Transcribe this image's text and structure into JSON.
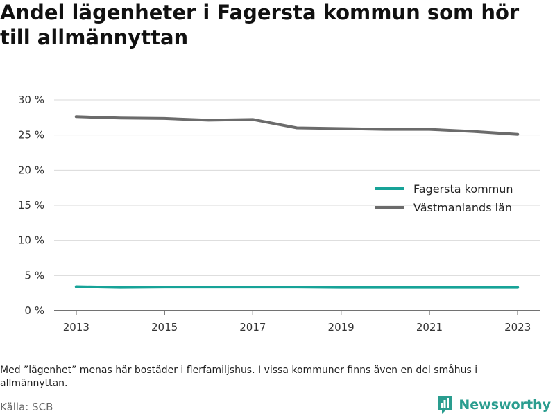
{
  "title": "Andel lägenheter i Fagersta kommun som hör till allmännyttan",
  "note": "Med ”lägenhet” menas här bostäder i flerfamiljshus. I vissa kommuner finns även en del småhus i allmännyttan.",
  "source": "Källa: SCB",
  "brand": {
    "name": "Newsworthy",
    "icon": "newsworthy-logo-icon",
    "color": "#2a9d8f"
  },
  "chart_data": {
    "type": "line",
    "title": "Andel lägenheter i Fagersta kommun som hör till allmännyttan",
    "xlabel": "",
    "ylabel": "",
    "x": [
      2013,
      2014,
      2015,
      2016,
      2017,
      2018,
      2019,
      2020,
      2021,
      2022,
      2023
    ],
    "x_ticks": [
      "2013",
      "2015",
      "2017",
      "2019",
      "2021",
      "2023"
    ],
    "ylim": [
      0,
      30
    ],
    "y_ticks": [
      0,
      5,
      10,
      15,
      20,
      25,
      30
    ],
    "y_tick_labels": [
      "0 %",
      "5 %",
      "10 %",
      "15 %",
      "20 %",
      "25 %",
      "30 %"
    ],
    "grid": true,
    "legend_position": "right-middle",
    "series": [
      {
        "name": "Fagersta kommun",
        "color": "#17a398",
        "values": [
          3.4,
          3.3,
          3.35,
          3.35,
          3.35,
          3.35,
          3.3,
          3.3,
          3.3,
          3.3,
          3.3
        ]
      },
      {
        "name": "Västmanlands län",
        "color": "#6b6b6b",
        "values": [
          27.6,
          27.4,
          27.35,
          27.1,
          27.2,
          26.0,
          25.9,
          25.8,
          25.8,
          25.5,
          25.1
        ]
      }
    ]
  }
}
